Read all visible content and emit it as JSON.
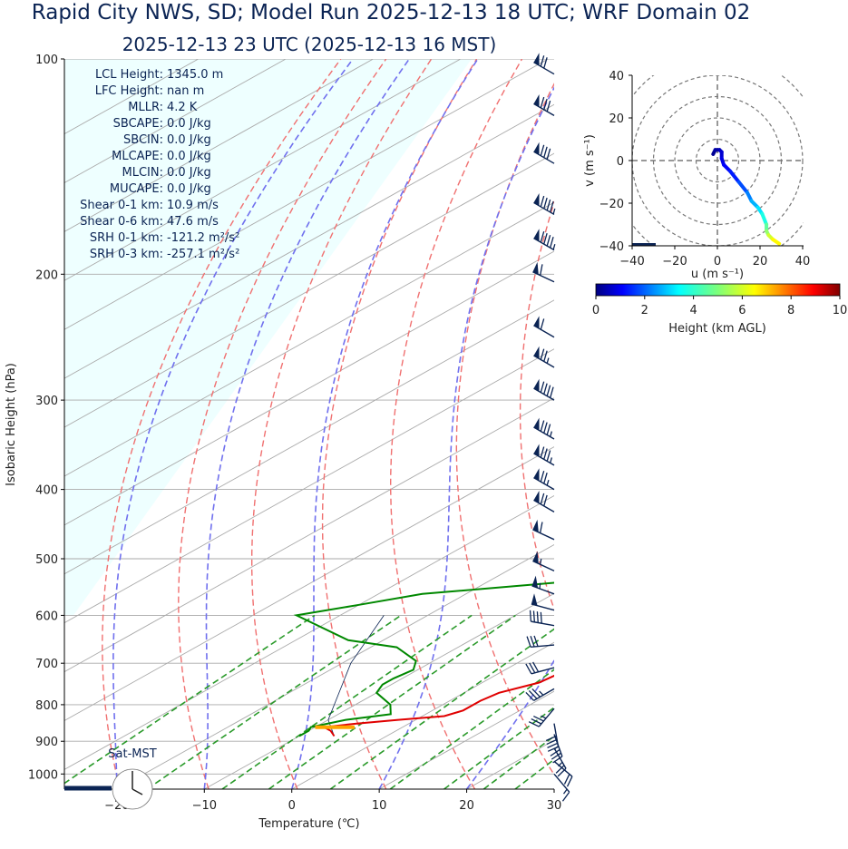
{
  "title_line1": "Rapid City NWS, SD; Model Run 2025-12-13 18 UTC; WRF Domain 02",
  "title_line2": "2025-12-13 23 UTC  (2025-12-13 16 MST)",
  "indices": [
    {
      "label": "LCL Height:",
      "value": "1345.0 m"
    },
    {
      "label": "LFC Height:",
      "value": "nan m"
    },
    {
      "label": "MLLR:",
      "value": "4.2 K"
    },
    {
      "label": "SBCAPE:",
      "value": "0.0 J/kg"
    },
    {
      "label": "SBCIN:",
      "value": "0.0 J/kg"
    },
    {
      "label": "MLCAPE:",
      "value": "0.0 J/kg"
    },
    {
      "label": "MLCIN:",
      "value": "0.0 J/kg"
    },
    {
      "label": "MUCAPE:",
      "value": "0.0 J/kg"
    },
    {
      "label": "Shear 0-1 km:",
      "value": "10.9 m/s"
    },
    {
      "label": "Shear 0-6 km:",
      "value": "47.6 m/s"
    },
    {
      "label": "SRH 0-1 km:",
      "value": "-121.2 m²/s²"
    },
    {
      "label": "SRH 0-3 km:",
      "value": "-257.1 m²/s²"
    }
  ],
  "clock_label": "Sat-MST",
  "colors": {
    "title": "#0b2454",
    "temperature": "#e00000",
    "dewpoint": "#008800",
    "dry_adiabat": "#f07070",
    "moist_adiabat": "#7070ee",
    "mixing_ratio": "#2a9a2a",
    "isotherm": "#aaaaaa",
    "fill": "#eeffff",
    "barb": "#0b2454",
    "parcel": "#ffa500"
  },
  "chart_data": [
    {
      "type": "line",
      "subtype": "skew-T log-P",
      "xlabel": "Temperature (℃)",
      "ylabel": "Isobaric Height (hPa)",
      "xlim": [
        -26,
        30
      ],
      "ylim": [
        1050,
        100
      ],
      "y_scale": "log",
      "x_ticks": [
        -20,
        -10,
        0,
        10,
        20,
        30
      ],
      "y_ticks": [
        1000,
        900,
        800,
        700,
        600,
        500,
        400,
        300,
        200,
        100
      ],
      "skew_deg_per_log": 63.5,
      "series": [
        {
          "key": "temperature",
          "points": [
            [
              885,
              -6.0
            ],
            [
              870,
              -7.5
            ],
            [
              860,
              -9.0
            ],
            [
              850,
              -6.0
            ],
            [
              840,
              -2.0
            ],
            [
              830,
              2.5
            ],
            [
              815,
              3.5
            ],
            [
              790,
              3.5
            ],
            [
              770,
              4.0
            ],
            [
              745,
              6.5
            ],
            [
              720,
              7.0
            ],
            [
              700,
              7.5
            ],
            [
              650,
              7.8
            ],
            [
              600,
              8.0
            ],
            [
              550,
              8.2
            ],
            [
              500,
              8.0
            ],
            [
              450,
              7.5
            ],
            [
              400,
              6.0
            ],
            [
              370,
              4.0
            ],
            [
              330,
              0.5
            ],
            [
              300,
              -2.0
            ],
            [
              260,
              -5.5
            ],
            [
              230,
              -8.0
            ],
            [
              210,
              -9.0
            ],
            [
              190,
              -9.0
            ],
            [
              180,
              -6.0
            ],
            [
              165,
              -1.0
            ],
            [
              150,
              1.0
            ],
            [
              135,
              4.0
            ],
            [
              120,
              8.0
            ],
            [
              100,
              11.5
            ]
          ]
        },
        {
          "key": "dewpoint",
          "points": [
            [
              885,
              -10.0
            ],
            [
              870,
              -10.0
            ],
            [
              860,
              -10.5
            ],
            [
              840,
              -8.0
            ],
            [
              825,
              -4.0
            ],
            [
              800,
              -6.0
            ],
            [
              770,
              -10.0
            ],
            [
              750,
              -11.0
            ],
            [
              735,
              -11.0
            ],
            [
              715,
              -10.5
            ],
            [
              695,
              -12.0
            ],
            [
              665,
              -17.0
            ],
            [
              650,
              -24.0
            ],
            [
              600,
              -35.0
            ],
            [
              580,
              -30.0
            ],
            [
              560,
              -25.0
            ],
            [
              540,
              -12.0
            ],
            [
              525,
              -9.0
            ],
            [
              480,
              -7.5
            ],
            [
              440,
              -6.5
            ],
            [
              400,
              -7.5
            ],
            [
              370,
              -9.0
            ],
            [
              330,
              -11.5
            ],
            [
              300,
              -12.5
            ],
            [
              260,
              -12.5
            ],
            [
              230,
              -12.0
            ],
            [
              200,
              -9.5
            ],
            [
              175,
              -7.5
            ],
            [
              160,
              -6.0
            ],
            [
              150,
              -5.5
            ],
            [
              140,
              -4.5
            ],
            [
              100,
              6.0
            ]
          ]
        },
        {
          "key": "parcel",
          "points": [
            [
              885,
              -6.0
            ],
            [
              840,
              -10.0
            ],
            [
              700,
              -19.0
            ],
            [
              600,
              -25.0
            ]
          ]
        }
      ],
      "wind_barbs": [
        {
          "p": 1000,
          "speed_kt": 15,
          "dir": 140
        },
        {
          "p": 960,
          "speed_kt": 20,
          "dir": 130
        },
        {
          "p": 920,
          "speed_kt": 25,
          "dir": 150
        },
        {
          "p": 880,
          "speed_kt": 35,
          "dir": 160
        },
        {
          "p": 850,
          "speed_kt": 40,
          "dir": 170
        },
        {
          "p": 810,
          "speed_kt": 35,
          "dir": 220
        },
        {
          "p": 760,
          "speed_kt": 35,
          "dir": 240
        },
        {
          "p": 710,
          "speed_kt": 30,
          "dir": 255
        },
        {
          "p": 660,
          "speed_kt": 30,
          "dir": 265
        },
        {
          "p": 620,
          "speed_kt": 40,
          "dir": 280
        },
        {
          "p": 590,
          "speed_kt": 50,
          "dir": 285
        },
        {
          "p": 560,
          "speed_kt": 55,
          "dir": 290
        },
        {
          "p": 520,
          "speed_kt": 55,
          "dir": 295
        },
        {
          "p": 470,
          "speed_kt": 60,
          "dir": 295
        },
        {
          "p": 430,
          "speed_kt": 70,
          "dir": 300
        },
        {
          "p": 400,
          "speed_kt": 75,
          "dir": 300
        },
        {
          "p": 370,
          "speed_kt": 85,
          "dir": 300
        },
        {
          "p": 340,
          "speed_kt": 85,
          "dir": 300
        },
        {
          "p": 300,
          "speed_kt": 90,
          "dir": 300
        },
        {
          "p": 270,
          "speed_kt": 75,
          "dir": 300
        },
        {
          "p": 245,
          "speed_kt": 60,
          "dir": 300
        },
        {
          "p": 205,
          "speed_kt": 60,
          "dir": 295
        },
        {
          "p": 185,
          "speed_kt": 95,
          "dir": 300
        },
        {
          "p": 165,
          "speed_kt": 95,
          "dir": 300
        },
        {
          "p": 140,
          "speed_kt": 80,
          "dir": 300
        },
        {
          "p": 120,
          "speed_kt": 80,
          "dir": 300
        },
        {
          "p": 105,
          "speed_kt": 70,
          "dir": 300
        }
      ]
    },
    {
      "type": "line",
      "subtype": "hodograph",
      "xlabel": "u (m s⁻¹)",
      "ylabel": "v (m s⁻¹)",
      "xlim": [
        -40,
        40
      ],
      "ylim": [
        -40,
        40
      ],
      "x_ticks": [
        -40,
        -20,
        0,
        20,
        40
      ],
      "y_ticks": [
        40,
        20,
        0,
        -20,
        -40
      ],
      "rings": [
        10,
        20,
        30,
        40
      ],
      "colorbar": {
        "label": "Height (km AGL)",
        "ticks": [
          0,
          2,
          4,
          6,
          8,
          10
        ],
        "range": [
          0,
          10
        ],
        "colormap": "jet"
      },
      "points": [
        {
          "u": -2,
          "v": 3,
          "h": 0.2
        },
        {
          "u": -1,
          "v": 5,
          "h": 0.4
        },
        {
          "u": 1,
          "v": 5,
          "h": 0.6
        },
        {
          "u": 2,
          "v": 4,
          "h": 0.8
        },
        {
          "u": 2,
          "v": 1,
          "h": 1.0
        },
        {
          "u": 3,
          "v": -2,
          "h": 1.2
        },
        {
          "u": 6,
          "v": -5,
          "h": 1.5
        },
        {
          "u": 10,
          "v": -10,
          "h": 2.0
        },
        {
          "u": 14,
          "v": -15,
          "h": 2.5
        },
        {
          "u": 16,
          "v": -19,
          "h": 3.0
        },
        {
          "u": 19,
          "v": -22,
          "h": 3.5
        },
        {
          "u": 21,
          "v": -25,
          "h": 4.0
        },
        {
          "u": 23,
          "v": -30,
          "h": 4.7
        },
        {
          "u": 23,
          "v": -33,
          "h": 5.2
        },
        {
          "u": 24,
          "v": -35,
          "h": 5.8
        },
        {
          "u": 26,
          "v": -37,
          "h": 6.3
        },
        {
          "u": 29,
          "v": -39,
          "h": 6.8
        }
      ]
    }
  ]
}
